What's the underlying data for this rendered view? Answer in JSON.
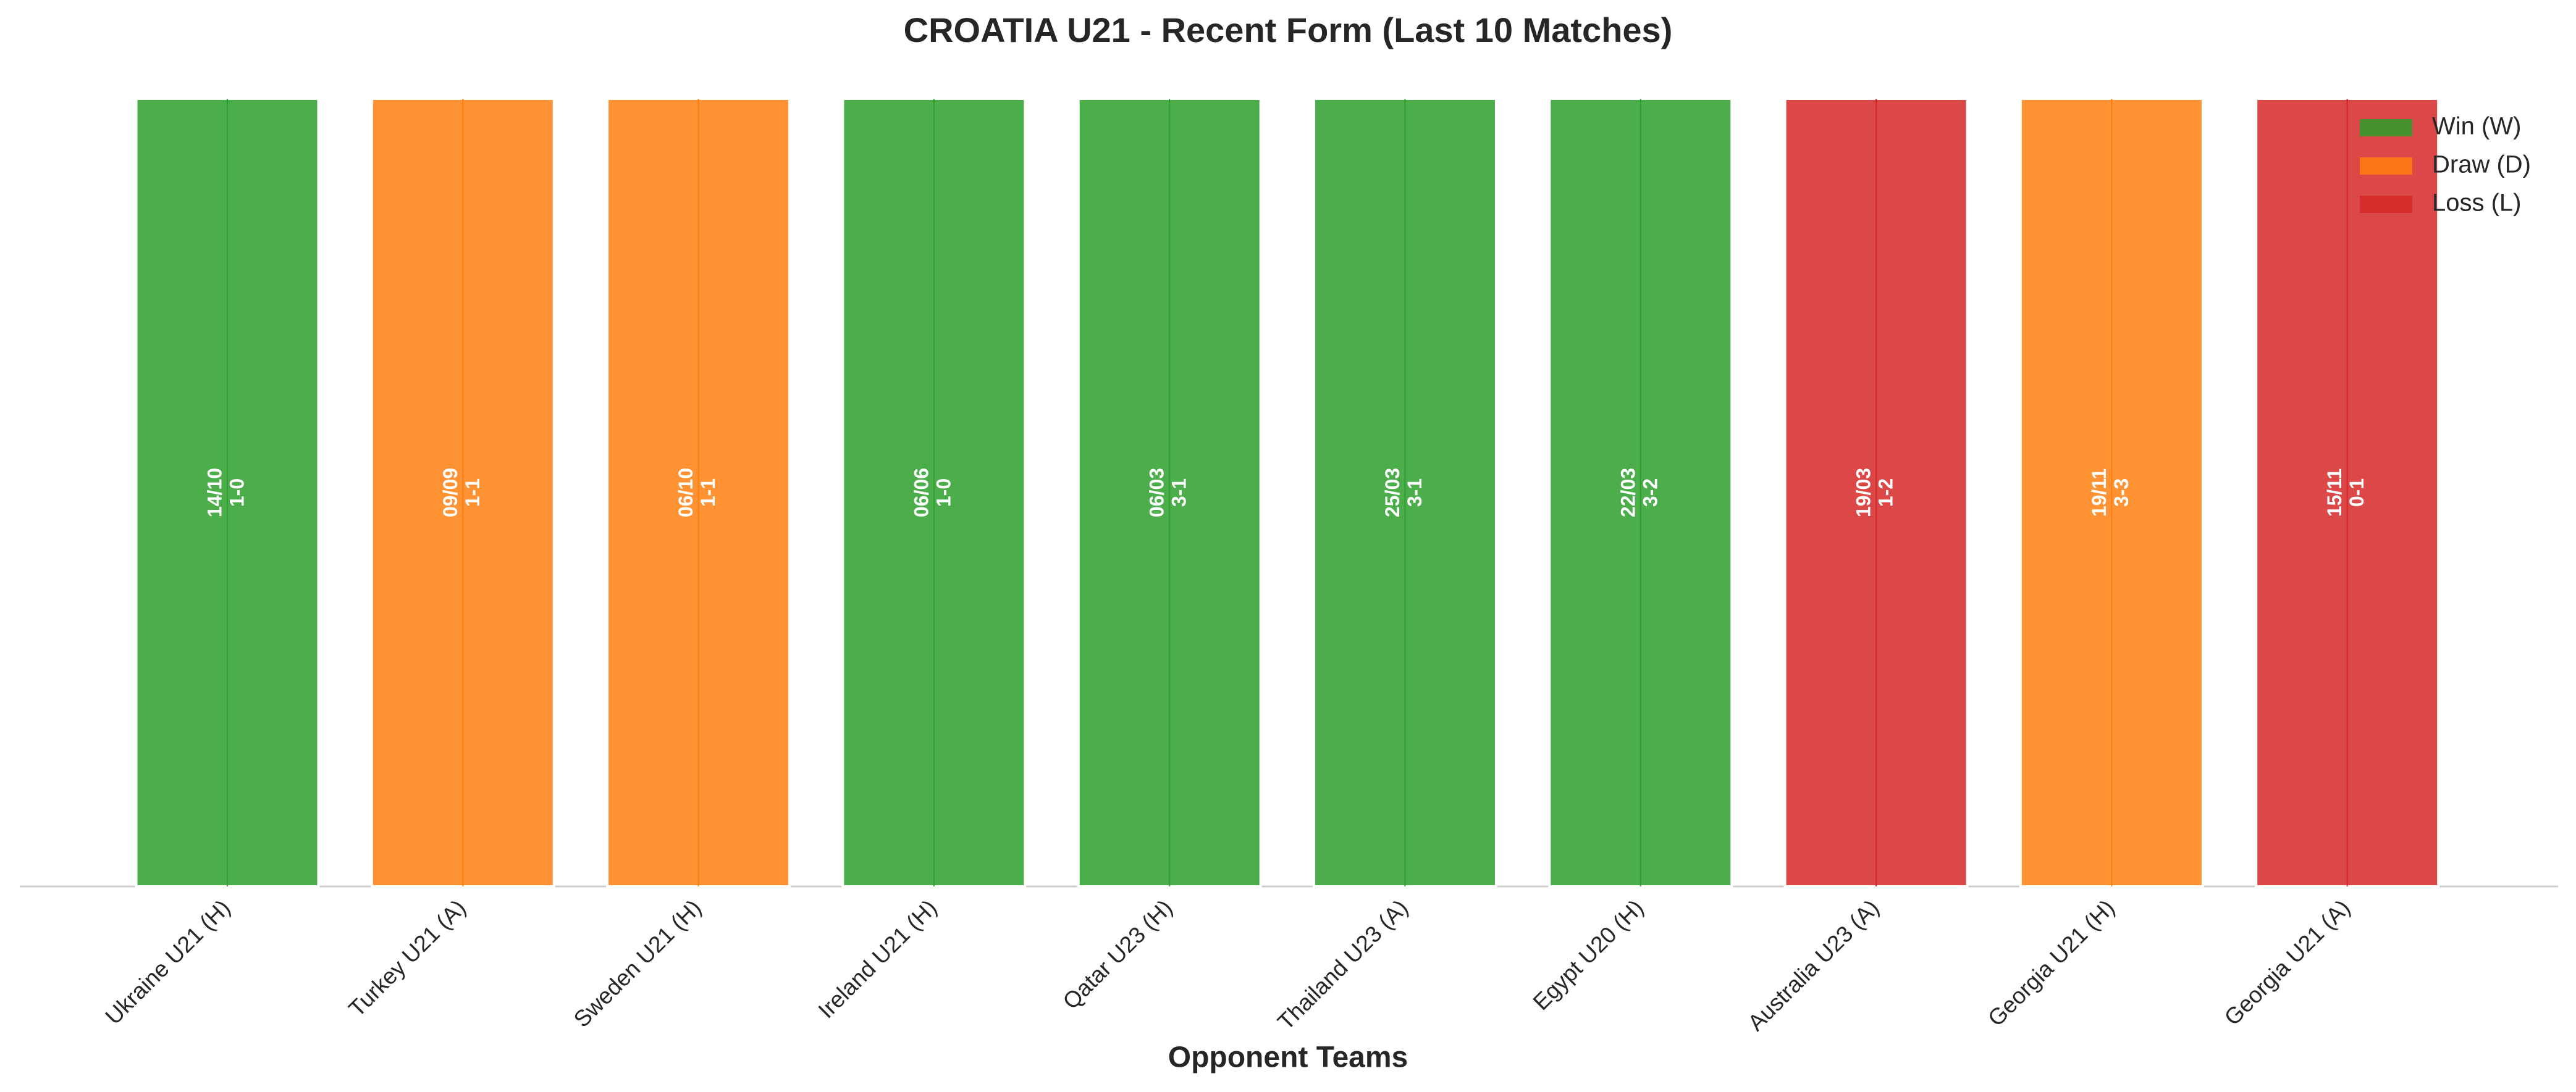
{
  "chart_data": {
    "type": "bar",
    "title": "CROATIA U21 - Recent Form (Last 10 Matches)",
    "x_label": "Opponent Teams",
    "categories": [
      "Ukraine U21 (H)",
      "Turkey U21 (A)",
      "Sweden U21 (H)",
      "Ireland U21 (H)",
      "Qatar U23 (H)",
      "Thailand U23 (A)",
      "Egypt U20 (H)",
      "Australia U23 (A)",
      "Georgia U21 (H)",
      "Georgia U21 (A)"
    ],
    "values": [
      1,
      1,
      1,
      1,
      1,
      1,
      1,
      1,
      1,
      1
    ],
    "dates": [
      "14/10",
      "09/09",
      "06/10",
      "06/06",
      "06/03",
      "25/03",
      "22/03",
      "19/03",
      "19/11",
      "15/11"
    ],
    "scores": [
      "1-0",
      "1-1",
      "1-1",
      "1-0",
      "3-1",
      "3-1",
      "3-2",
      "1-2",
      "3-3",
      "0-1"
    ],
    "colors": [
      "#2ca02c",
      "#ff7f0e",
      "#ff7f0e",
      "#2ca02c",
      "#2ca02c",
      "#2ca02c",
      "#2ca02c",
      "#d62728",
      "#ff7f0e",
      "#d62728"
    ],
    "ylim": [
      0,
      1
    ],
    "legend": [
      {
        "name": "Win (W)",
        "color": "#2ca02c"
      },
      {
        "name": "Draw (D)",
        "color": "#ff7f0e"
      },
      {
        "name": "Loss (L)",
        "color": "#d62728"
      }
    ],
    "legend_position": "upper right"
  }
}
